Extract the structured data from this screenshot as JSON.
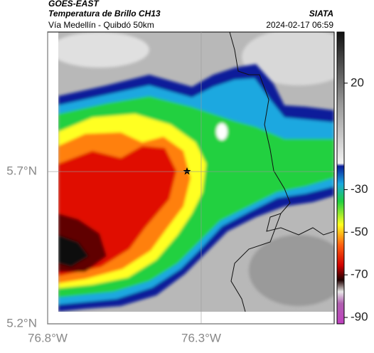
{
  "header": {
    "title": "GOES-EAST",
    "subtitle": "Temperatura de Brillo CH13",
    "route": "Vía Medellín - Quibdó 50km",
    "source": "SIATA",
    "timestamp": "2024-02-17 06:59"
  },
  "map": {
    "xlim": [
      -76.8,
      -75.867
    ],
    "xticks": [
      {
        "value": -76.8,
        "label": "76.8°W"
      },
      {
        "value": -76.3,
        "label": "76.3°W"
      }
    ],
    "ylim": [
      5.2,
      6.158
    ],
    "yticks": [
      {
        "value": 5.2,
        "label": "5.2°N"
      },
      {
        "value": 5.7,
        "label": "5.7°N"
      }
    ],
    "grid": true
  },
  "colorbar": {
    "lim": [
      -93,
      44
    ],
    "ticks": [
      20,
      -30,
      -50,
      -70,
      -90
    ]
  }
}
